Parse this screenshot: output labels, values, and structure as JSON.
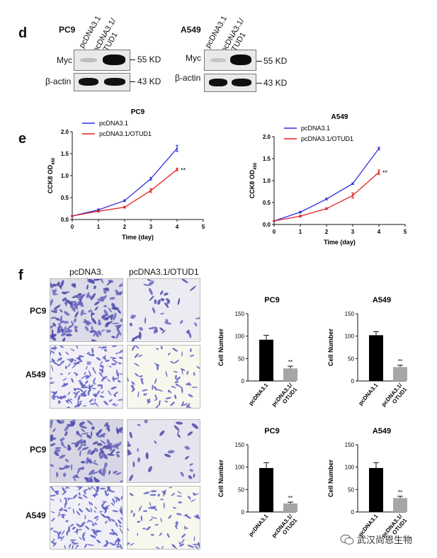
{
  "panel_d": {
    "letter": "d",
    "blots": [
      {
        "cell_line": "PC9",
        "lanes": [
          "pcDNA3.1",
          "pcDNA3.1/ OTUD1"
        ],
        "rows": [
          "Myc",
          "β-actin"
        ],
        "sizes": [
          "55 KD",
          "43 KD"
        ]
      },
      {
        "cell_line": "A549",
        "lanes": [
          "pcDNA3.1",
          "pcDNA3.1/ OTUD1"
        ],
        "rows": [
          "Myc",
          "β-actin"
        ],
        "sizes": [
          "55 KD",
          "43 KD"
        ]
      }
    ]
  },
  "panel_e": {
    "letter": "e"
  },
  "panel_f": {
    "letter": "f",
    "col_labels": [
      "pcDNA3.",
      "pcDNA3.1/OTUD1"
    ],
    "col_label_overflow": "1",
    "row_labels": [
      "PC9",
      "A549",
      "PC9",
      "A549"
    ]
  },
  "watermark": "武汉尚恩生物",
  "colors": {
    "blue": "#2f2fe0",
    "red": "#e02020",
    "black_bar": "#000000",
    "gray_bar": "#a6a6a6"
  },
  "chart_data": [
    {
      "type": "line",
      "title": "PC9",
      "xlabel": "Time (day)",
      "ylabel": "CCK8 OD450",
      "x": [
        0,
        1,
        2,
        3,
        4
      ],
      "xlim": [
        0,
        5
      ],
      "ylim": [
        0,
        2.0
      ],
      "xticks": [
        "0",
        "1",
        "2",
        "3",
        "4",
        "5"
      ],
      "yticks": [
        "0.0",
        "0.5",
        "1.0",
        "1.5",
        "2.0"
      ],
      "series": [
        {
          "name": "pcDNA3.1",
          "color": "#2f2fe0",
          "values": [
            0.08,
            0.22,
            0.43,
            0.93,
            1.62
          ],
          "errors": [
            0.01,
            0.02,
            0.02,
            0.03,
            0.07
          ]
        },
        {
          "name": "pcDNA3.1/OTUD1",
          "color": "#e02020",
          "values": [
            0.08,
            0.19,
            0.28,
            0.66,
            1.14
          ],
          "errors": [
            0.01,
            0.02,
            0.02,
            0.04,
            0.03
          ]
        }
      ],
      "annotation": "**"
    },
    {
      "type": "line",
      "title": "A549",
      "xlabel": "Time (day)",
      "ylabel": "CCK8 OD450",
      "x": [
        0,
        1,
        2,
        3,
        4
      ],
      "xlim": [
        0,
        5
      ],
      "ylim": [
        0,
        2.0
      ],
      "xticks": [
        "0",
        "1",
        "2",
        "3",
        "4",
        "5"
      ],
      "yticks": [
        "0.0",
        "0.5",
        "1.0",
        "1.5",
        "2.0"
      ],
      "series": [
        {
          "name": "pcDNA3.1",
          "color": "#2f2fe0",
          "values": [
            0.08,
            0.28,
            0.58,
            0.93,
            1.73
          ],
          "errors": [
            0.01,
            0.02,
            0.02,
            0.02,
            0.03
          ]
        },
        {
          "name": "pcDNA3.1/OTUD1",
          "color": "#e02020",
          "values": [
            0.08,
            0.19,
            0.36,
            0.66,
            1.19
          ],
          "errors": [
            0.01,
            0.02,
            0.02,
            0.06,
            0.05
          ]
        }
      ],
      "annotation": "**"
    },
    {
      "type": "bar",
      "title": "PC9",
      "ylabel": "Cell Number",
      "categories": [
        "pcDNA3.1",
        "pcDNA3.1/ OTUD1"
      ],
      "values": [
        92,
        28
      ],
      "errors": [
        10,
        5
      ],
      "ylim": [
        0,
        150
      ],
      "yticks": [
        "0",
        "50",
        "100",
        "150"
      ],
      "annotation": "**"
    },
    {
      "type": "bar",
      "title": "A549",
      "ylabel": "Cell Number",
      "categories": [
        "pcDNA3.1",
        "pcDNA3.1/ OTUD1"
      ],
      "values": [
        102,
        31
      ],
      "errors": [
        8,
        4
      ],
      "ylim": [
        0,
        150
      ],
      "yticks": [
        "0",
        "50",
        "100",
        "150"
      ],
      "annotation": "**"
    },
    {
      "type": "bar",
      "title": "PC9",
      "ylabel": "Cell Number",
      "categories": [
        "pcDNA3.1",
        "pcDNA3.1/ OTUD1"
      ],
      "values": [
        98,
        19
      ],
      "errors": [
        12,
        3
      ],
      "ylim": [
        0,
        150
      ],
      "yticks": [
        "0",
        "50",
        "100",
        "150"
      ],
      "annotation": "**"
    },
    {
      "type": "bar",
      "title": "A549",
      "ylabel": "Cell Number",
      "categories": [
        "pcDNA3.1",
        "pcDNA3.1/ OTUD1"
      ],
      "values": [
        98,
        31
      ],
      "errors": [
        12,
        4
      ],
      "ylim": [
        0,
        150
      ],
      "yticks": [
        "0",
        "50",
        "100",
        "150"
      ],
      "annotation": "**"
    }
  ]
}
